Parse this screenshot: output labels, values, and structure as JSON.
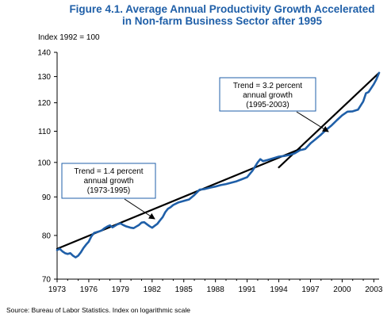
{
  "header": {
    "figure_title_line1": "Figure 4.1.   Average Annual Productivity Growth Accelerated",
    "figure_title_line2": "in Non-farm Business Sector after 1995"
  },
  "footer": {
    "source": "Source: Bureau of Labor Statistics. Index on logarithmic scale"
  },
  "chart_data": {
    "type": "line",
    "title": "Figure 4.1.   Average Annual Productivity Growth Accelerated in Non-farm Business Sector after 1995",
    "ylabel": "Index 1992 = 100",
    "xlabel": "",
    "yscale": "log",
    "ylim": [
      70,
      140
    ],
    "xlim": [
      1973,
      2003.5
    ],
    "yticks": [
      70,
      80,
      90,
      100,
      110,
      120,
      130,
      140
    ],
    "xticks": [
      1973,
      1976,
      1979,
      1982,
      1985,
      1988,
      1991,
      1994,
      1997,
      2000,
      2003
    ],
    "grid": false,
    "colors": {
      "series": "#1f5fa8",
      "trend": "#000000",
      "title": "#1f5fa8",
      "annotation_border": "#1f5fa8"
    },
    "series": [
      {
        "x": [
          1973.0,
          1973.25,
          1973.5,
          1973.75,
          1974.0,
          1974.25,
          1974.5,
          1974.75,
          1975.0,
          1975.25,
          1975.5,
          1975.75,
          1976.0,
          1976.25,
          1976.5,
          1976.75,
          1977.0,
          1977.25,
          1977.5,
          1977.75,
          1978.0,
          1978.25,
          1978.5,
          1978.75,
          1979.0,
          1979.25,
          1979.5,
          1979.75,
          1980.0,
          1980.25,
          1980.5,
          1980.75,
          1981.0,
          1981.25,
          1981.5,
          1981.75,
          1982.0,
          1982.25,
          1982.5,
          1982.75,
          1983.0,
          1983.25,
          1983.5,
          1983.75,
          1984.0,
          1984.5,
          1985.0,
          1985.5,
          1986.0,
          1986.5,
          1987.0,
          1987.5,
          1988.0,
          1988.5,
          1989.0,
          1989.5,
          1990.0,
          1990.5,
          1991.0,
          1991.5,
          1992.0,
          1992.25,
          1992.5,
          1993.0,
          1993.5,
          1994.0,
          1994.5,
          1995.0,
          1995.5,
          1996.0,
          1996.5,
          1997.0,
          1997.5,
          1998.0,
          1998.5,
          1999.0,
          1999.5,
          2000.0,
          2000.5,
          2001.0,
          2001.5,
          2002.0,
          2002.25,
          2002.5,
          2003.0,
          2003.25,
          2003.5
        ],
        "values": [
          76.5,
          76.8,
          76.2,
          75.8,
          75.6,
          75.8,
          75.2,
          74.8,
          75.2,
          76.0,
          77.0,
          77.8,
          78.5,
          79.8,
          80.6,
          80.8,
          81.0,
          81.3,
          81.8,
          82.2,
          82.5,
          82.0,
          82.4,
          82.8,
          83.0,
          82.6,
          82.3,
          82.1,
          81.9,
          81.8,
          82.2,
          82.6,
          83.2,
          83.3,
          82.8,
          82.3,
          81.9,
          82.4,
          82.9,
          83.8,
          84.6,
          85.9,
          86.8,
          87.2,
          87.8,
          88.5,
          88.9,
          89.3,
          90.5,
          92.0,
          92.2,
          92.6,
          92.9,
          93.3,
          93.6,
          94.0,
          94.4,
          95.0,
          95.6,
          97.5,
          100.0,
          101.0,
          100.4,
          100.8,
          101.3,
          101.8,
          102.0,
          102.3,
          102.8,
          103.8,
          104.2,
          106.0,
          107.4,
          108.9,
          110.5,
          112.0,
          113.8,
          115.5,
          116.8,
          116.9,
          117.5,
          120.5,
          123.5,
          124.0,
          127.0,
          129.0,
          131.5
        ]
      }
    ],
    "trend_lines": [
      {
        "x": [
          1973,
          1996
        ],
        "values": [
          76.8,
          104.2
        ]
      },
      {
        "x": [
          1994,
          2003.5
        ],
        "values": [
          98.5,
          131.5
        ]
      }
    ],
    "annotations": [
      {
        "lines": [
          "Trend = 1.4 percent",
          "annual growth",
          "(1973-1995)"
        ]
      },
      {
        "lines": [
          "Trend = 3.2 percent",
          "annual growth",
          "(1995-2003)"
        ]
      }
    ]
  }
}
